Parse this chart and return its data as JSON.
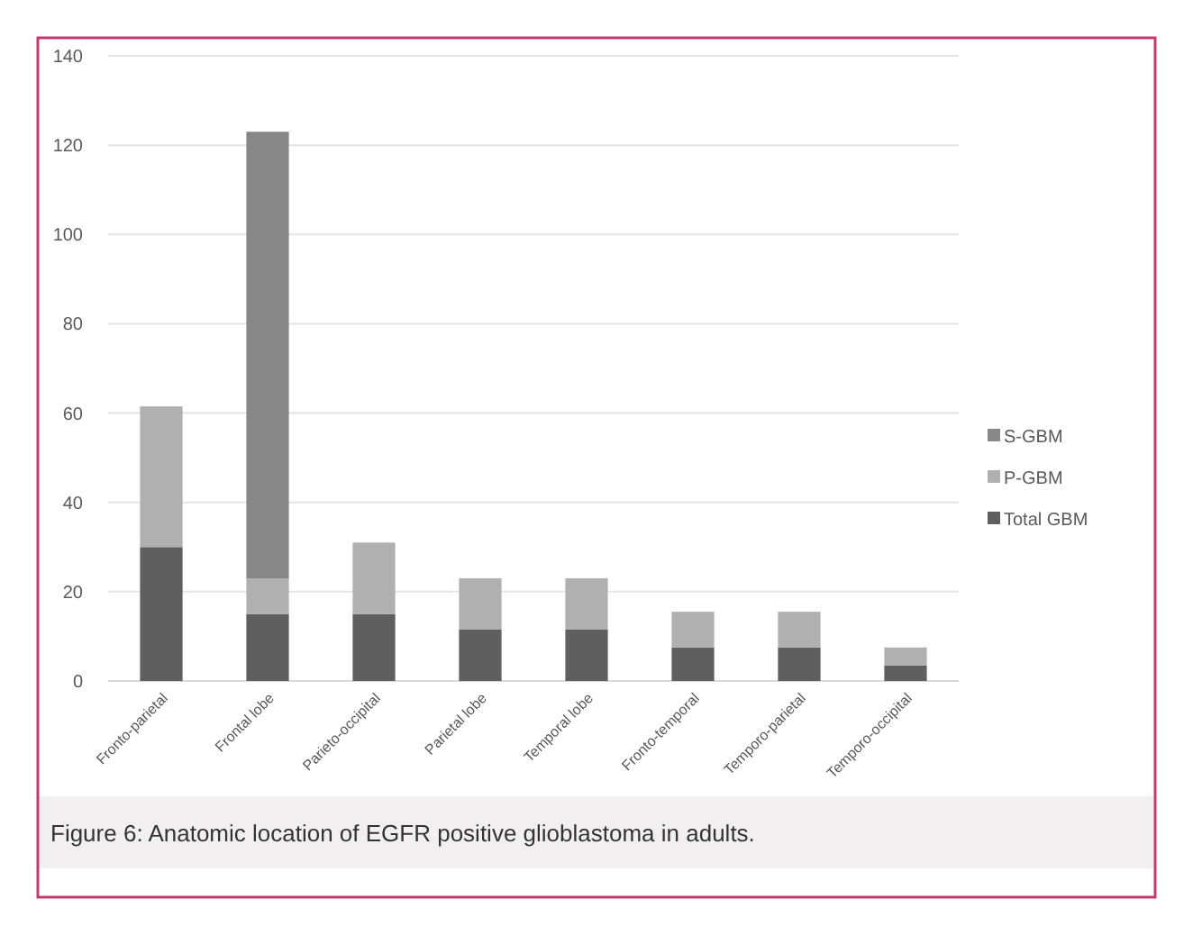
{
  "chart_data": {
    "type": "bar",
    "stacked": true,
    "categories": [
      "Fronto-parietal",
      "Frontal lobe",
      "Parieto-occipital",
      "Parietal lobe",
      "Temporal lobe",
      "Fronto-temporal",
      "Temporo-parietal",
      "Temporo-occipital"
    ],
    "series": [
      {
        "name": "Total GBM",
        "color": "#5f5f5f",
        "values": [
          30,
          15,
          15,
          11.5,
          11.5,
          7.5,
          7.5,
          3.5
        ]
      },
      {
        "name": "P-GBM",
        "color": "#b0b0b0",
        "values": [
          31.5,
          8,
          16,
          11.5,
          11.5,
          8,
          8,
          4
        ]
      },
      {
        "name": "S-GBM",
        "color": "#878787",
        "values": [
          0,
          100,
          0,
          0,
          0,
          0,
          0,
          0
        ]
      }
    ],
    "ylim": [
      0,
      140
    ],
    "yticks": [
      0,
      20,
      40,
      60,
      80,
      100,
      120,
      140
    ],
    "grid": "y",
    "legend": "right",
    "annotations": [
      "Figure 6: Anatomic location of EGFR positive glioblastoma in adults."
    ]
  }
}
